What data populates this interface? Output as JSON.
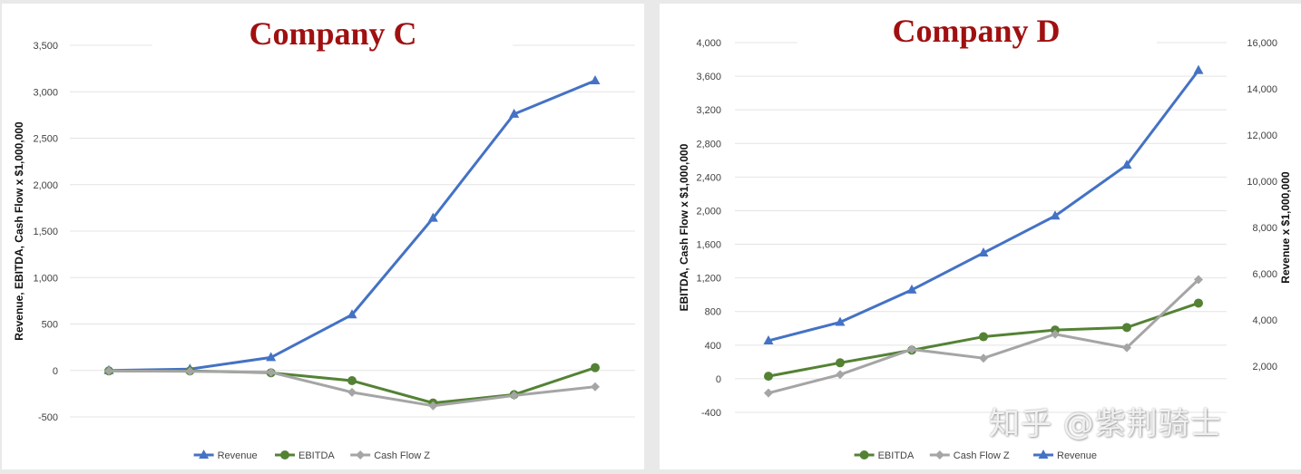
{
  "watermark": "知乎 @紫荆骑士",
  "colors": {
    "revenue": "#4472c4",
    "ebitda": "#548235",
    "cashflow": "#a5a5a5",
    "title": "#a01010"
  },
  "chart_data": [
    {
      "type": "line",
      "title": "Company C",
      "ylabel": "Revenue, EBITDA, Cash Flow  x $1,000,000",
      "xlabel": "",
      "ylim": [
        -500,
        3500
      ],
      "yticks": [
        -500,
        0,
        500,
        1000,
        1500,
        2000,
        2500,
        3000,
        3500
      ],
      "ytick_labels": [
        "-500",
        "0",
        "500",
        "1,000",
        "1,500",
        "2,000",
        "2,500",
        "3,000",
        "3,500"
      ],
      "grid": true,
      "legend_position": "bottom",
      "x": [
        1,
        2,
        3,
        4,
        5,
        6,
        7
      ],
      "series": [
        {
          "name": "Revenue",
          "axis": "left",
          "marker": "triangle",
          "color": "#4472c4",
          "values": [
            0,
            15,
            140,
            600,
            1640,
            2760,
            3120
          ]
        },
        {
          "name": "EBITDA",
          "axis": "left",
          "marker": "circle",
          "color": "#548235",
          "values": [
            -5,
            -5,
            -25,
            -110,
            -350,
            -260,
            30
          ]
        },
        {
          "name": "Cash Flow Z",
          "axis": "left",
          "marker": "diamond",
          "color": "#a5a5a5",
          "values": [
            -5,
            -10,
            -20,
            -235,
            -380,
            -270,
            -175
          ]
        }
      ]
    },
    {
      "type": "line",
      "title": "Company D",
      "ylabel": "EBITDA, Cash Flow  x $1,000,000",
      "y2label": "Revenue x $1,000,000",
      "xlabel": "",
      "ylim": [
        -400,
        4000
      ],
      "yticks": [
        -400,
        0,
        400,
        800,
        1200,
        1600,
        2000,
        2400,
        2800,
        3200,
        3600,
        4000
      ],
      "ytick_labels": [
        "-400",
        "0",
        "400",
        "800",
        "1,200",
        "1,600",
        "2,000",
        "2,400",
        "2,800",
        "3,200",
        "3,600",
        "4,000"
      ],
      "y2lim": [
        0,
        16000
      ],
      "y2ticks": [
        2000,
        4000,
        6000,
        8000,
        10000,
        12000,
        14000,
        16000
      ],
      "y2tick_labels": [
        "2,000",
        "4,000",
        "6,000",
        "8,000",
        "10,000",
        "12,000",
        "14,000",
        "16,000"
      ],
      "grid": true,
      "legend_position": "bottom",
      "x": [
        1,
        2,
        3,
        4,
        5,
        6,
        7
      ],
      "series": [
        {
          "name": "EBITDA",
          "axis": "left",
          "marker": "circle",
          "color": "#548235",
          "values": [
            30,
            190,
            340,
            500,
            580,
            610,
            900
          ]
        },
        {
          "name": "Cash Flow Z",
          "axis": "left",
          "marker": "diamond",
          "color": "#a5a5a5",
          "values": [
            -170,
            50,
            350,
            245,
            530,
            370,
            1180
          ]
        },
        {
          "name": "Revenue",
          "axis": "right",
          "marker": "triangle",
          "color": "#4472c4",
          "values": [
            3100,
            3900,
            5300,
            6900,
            8500,
            10700,
            14800
          ]
        }
      ]
    }
  ]
}
